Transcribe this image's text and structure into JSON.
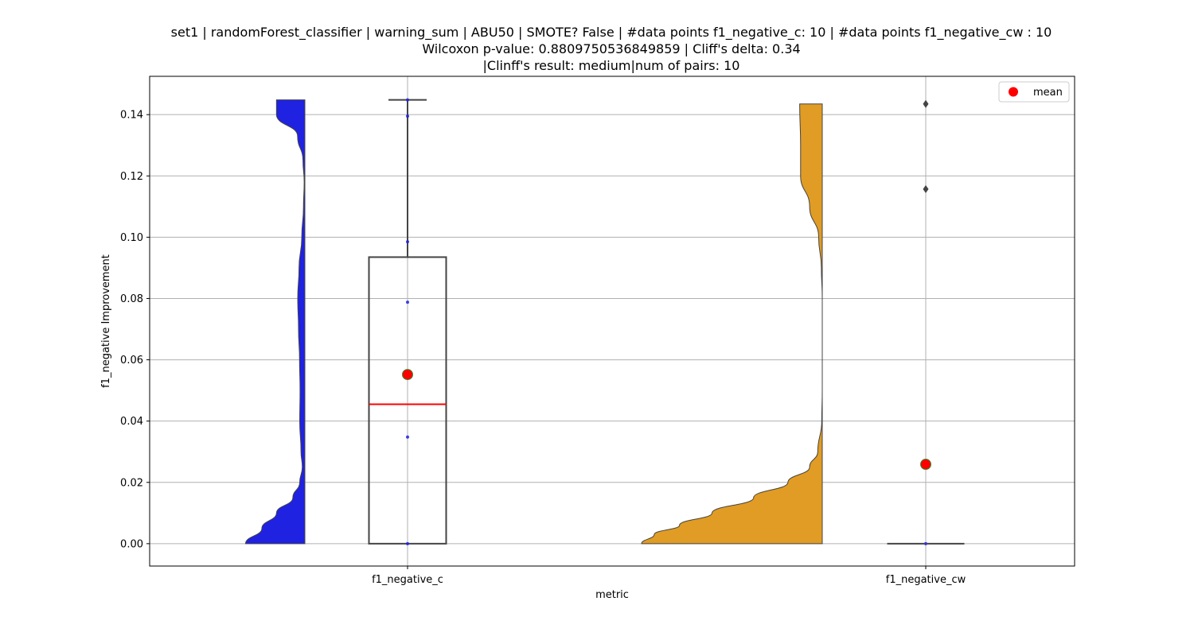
{
  "chart_data": {
    "type": "violin+box",
    "title_lines": [
      "set1 | randomForest_classifier | warning_sum | ABU50 | SMOTE? False | #data points f1_negative_c: 10 | #data points f1_negative_cw : 10",
      "Wilcoxon p-value: 0.8809750536849859 | Cliff's delta: 0.34",
      "|Clinff's result: medium|num of pairs: 10"
    ],
    "xlabel": "metric",
    "ylabel": "f1_negative Improvement",
    "categories": [
      "f1_negative_c",
      "f1_negative_cw"
    ],
    "ylim": [
      -0.0073,
      0.1525
    ],
    "yticks": [
      0.0,
      0.02,
      0.04,
      0.06,
      0.08,
      0.1,
      0.12,
      0.14
    ],
    "ytick_labels": [
      "0.00",
      "0.02",
      "0.04",
      "0.06",
      "0.08",
      "0.10",
      "0.12",
      "0.14"
    ],
    "grid": true,
    "legend": {
      "position": "top-right",
      "entries": [
        {
          "label": "mean",
          "color": "#ff0000"
        }
      ]
    },
    "series": [
      {
        "category": "f1_negative_c",
        "violin_color": "#1f22e1",
        "violin_profile": [
          [
            0.0,
            0.69
          ],
          [
            0.005,
            0.5
          ],
          [
            0.01,
            0.33
          ],
          [
            0.015,
            0.14
          ],
          [
            0.02,
            0.06
          ],
          [
            0.025,
            0.03
          ],
          [
            0.03,
            0.045
          ],
          [
            0.04,
            0.06
          ],
          [
            0.05,
            0.056
          ],
          [
            0.06,
            0.062
          ],
          [
            0.07,
            0.074
          ],
          [
            0.08,
            0.083
          ],
          [
            0.09,
            0.068
          ],
          [
            0.1,
            0.036
          ],
          [
            0.11,
            0.016
          ],
          [
            0.118,
            0.008
          ],
          [
            0.125,
            0.022
          ],
          [
            0.133,
            0.085
          ],
          [
            0.14,
            0.33
          ],
          [
            0.1448,
            0.33
          ]
        ],
        "violin_range": [
          0.0,
          0.1448
        ],
        "box": {
          "q1": 0.0,
          "median": 0.0455,
          "q3": 0.0935,
          "whisker_low": 0.0,
          "whisker_high": 0.1448
        },
        "mean": 0.0552,
        "points": [
          0.0,
          0.0348,
          0.0788,
          0.0985,
          0.1395,
          0.1448
        ],
        "outliers": []
      },
      {
        "category": "f1_negative_cw",
        "violin_color": "#e09c24",
        "violin_profile": [
          [
            0.0,
            1.0
          ],
          [
            0.003,
            0.93
          ],
          [
            0.006,
            0.79
          ],
          [
            0.01,
            0.61
          ],
          [
            0.015,
            0.38
          ],
          [
            0.02,
            0.19
          ],
          [
            0.025,
            0.07
          ],
          [
            0.03,
            0.025
          ],
          [
            0.04,
            0.003
          ],
          [
            0.05,
            0.0
          ],
          [
            0.08,
            0.0
          ],
          [
            0.09,
            0.005
          ],
          [
            0.1,
            0.02
          ],
          [
            0.11,
            0.07
          ],
          [
            0.12,
            0.12
          ],
          [
            0.13,
            0.12
          ],
          [
            0.1435,
            0.125
          ]
        ],
        "violin_range": [
          0.0,
          0.1435
        ],
        "box": {
          "q1": 0.0,
          "median": 0.0,
          "q3": 0.0,
          "whisker_low": 0.0,
          "whisker_high": 0.0
        },
        "mean": 0.0259,
        "points": [
          0.0
        ],
        "outliers": [
          0.1157,
          0.1435
        ]
      }
    ]
  }
}
